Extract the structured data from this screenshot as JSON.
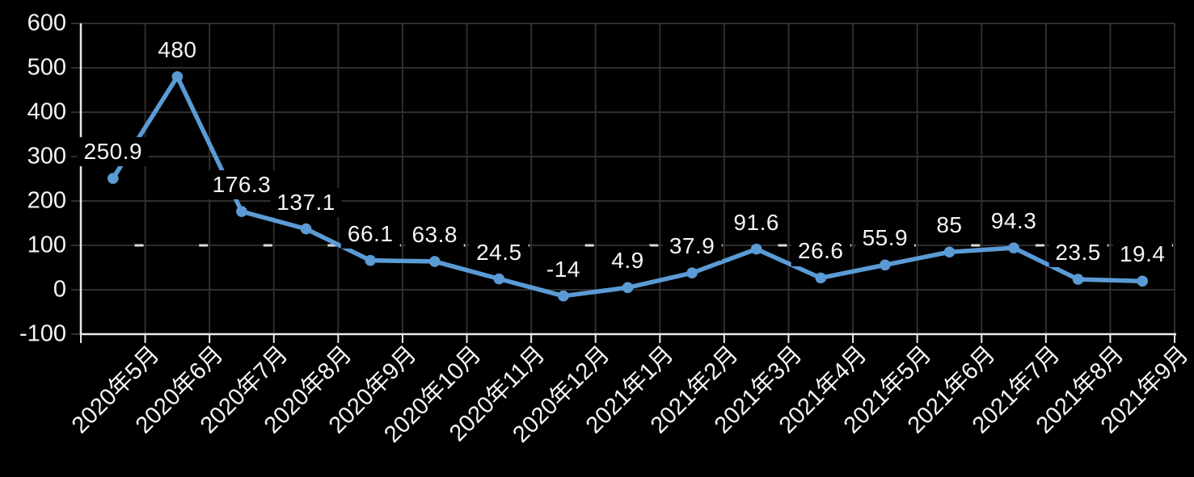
{
  "chart_data": {
    "type": "line",
    "title": "",
    "xlabel": "",
    "ylabel": "",
    "legend": "none",
    "grid": true,
    "categories": [
      "2020年5月",
      "2020年6月",
      "2020年7月",
      "2020年8月",
      "2020年9月",
      "2020年10月",
      "2020年11月",
      "2020年12月",
      "2021年1月",
      "2021年2月",
      "2021年3月",
      "2021年4月",
      "2021年5月",
      "2021年6月",
      "2021年7月",
      "2021年8月",
      "2021年9月"
    ],
    "values": [
      250.9,
      480,
      176.3,
      137.1,
      66.1,
      63.8,
      24.5,
      -14,
      4.9,
      37.9,
      91.6,
      26.6,
      55.9,
      85,
      94.3,
      23.5,
      19.4
    ],
    "value_labels": [
      "250.9",
      "480",
      "176.3",
      "137.1",
      "66.1",
      "63.8",
      "24.5",
      "-14",
      "4.9",
      "37.9",
      "91.6",
      "26.6",
      "55.9",
      "85",
      "94.3",
      "23.5",
      "19.4"
    ],
    "ylim": [
      -100,
      600
    ],
    "ytick_interval": 100,
    "ytick_labels": [
      "600",
      "500",
      "400",
      "300",
      "200",
      "100",
      "0",
      "-100"
    ],
    "colors": {
      "background": "#000000",
      "series_line": "#5B9BD5",
      "marker": "#5B9BD5",
      "data_label_text": "#F5F5F5",
      "data_label_background": "#000000",
      "axis_line": "#EAEAEA",
      "gridline": "#2E2E2E",
      "grid_highlight_dash": "#DCDCDC",
      "tick_label_text": "#F5F5F5"
    }
  }
}
